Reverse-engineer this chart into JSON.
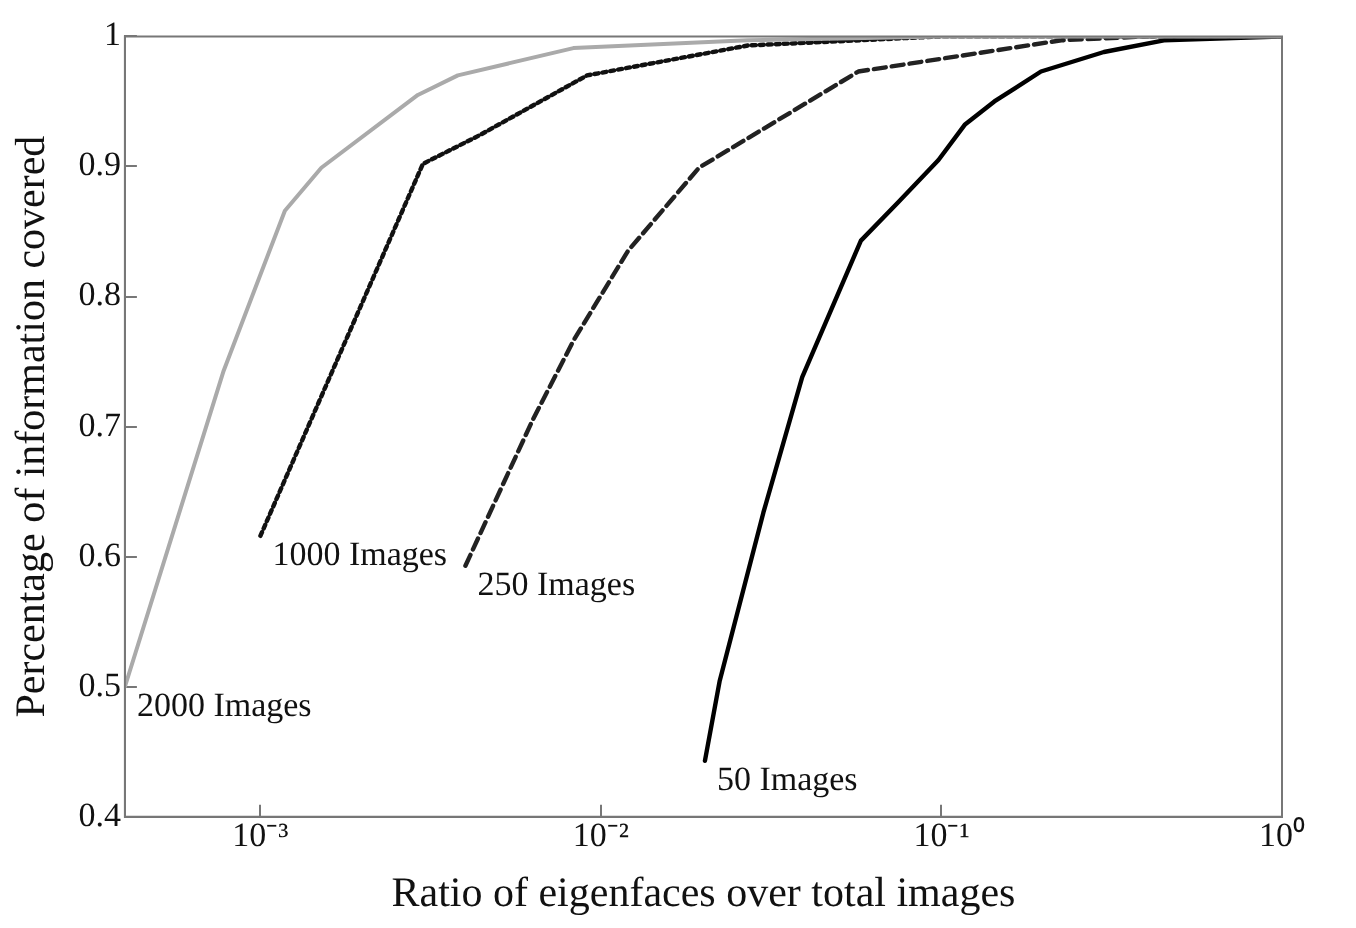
{
  "chart_data": {
    "type": "line",
    "xlabel": "Ratio of eigenfaces over total images",
    "ylabel": "Percentage of information covered",
    "log": "x",
    "grid": false,
    "legend": false,
    "marker": "none",
    "xlim": [
      0.0004,
      1
    ],
    "xticks": [
      {
        "value": 0.001,
        "label": "10⁻³"
      },
      {
        "value": 0.01,
        "label": "10⁻²"
      },
      {
        "value": 0.1,
        "label": "10⁻¹"
      },
      {
        "value": 1,
        "label": "10⁰"
      }
    ],
    "ylim": [
      0.4,
      1
    ],
    "yticks": [
      0.4,
      0.5,
      0.6,
      0.7,
      0.8,
      0.9,
      1
    ],
    "series": [
      {
        "color": "#aaaaaa",
        "line_style": "solid",
        "x": [
          0.0004,
          0.00078,
          0.00118,
          0.00151,
          0.0029,
          0.0038,
          0.0083,
          0.027,
          0.1,
          1
        ],
        "values": [
          0.5,
          0.743,
          0.866,
          0.899,
          0.955,
          0.97,
          0.991,
          0.997,
          1,
          1
        ]
      },
      {
        "color": "#111111",
        "line_style": "dotted",
        "x": [
          0.001,
          0.003,
          0.0044,
          0.0091,
          0.027,
          0.1,
          1
        ],
        "values": [
          0.616,
          0.902,
          0.924,
          0.97,
          0.993,
          1,
          1
        ]
      },
      {
        "color": "#222222",
        "line_style": "dashed",
        "x": [
          0.004,
          0.0063,
          0.0083,
          0.012,
          0.0194,
          0.057,
          0.225,
          0.4,
          1
        ],
        "values": [
          0.593,
          0.705,
          0.766,
          0.835,
          0.899,
          0.973,
          0.997,
          1,
          1
        ]
      },
      {
        "color": "#000000",
        "line_style": "solid",
        "x": [
          0.0202,
          0.0223,
          0.03,
          0.039,
          0.058,
          0.075,
          0.098,
          0.117,
          0.143,
          0.196,
          0.3,
          0.45,
          1
        ],
        "values": [
          0.443,
          0.504,
          0.634,
          0.738,
          0.843,
          0.873,
          0.905,
          0.932,
          0.95,
          0.973,
          0.988,
          0.997,
          1
        ]
      }
    ],
    "annotations": [
      {
        "text": "2000 Images",
        "x": 0.0004,
        "y": 0.5
      },
      {
        "text": "1000 Images",
        "x": 0.001,
        "y": 0.616
      },
      {
        "text": "250 Images",
        "x": 0.004,
        "y": 0.593
      },
      {
        "text": "50 Images",
        "x": 0.0202,
        "y": 0.443
      }
    ]
  }
}
